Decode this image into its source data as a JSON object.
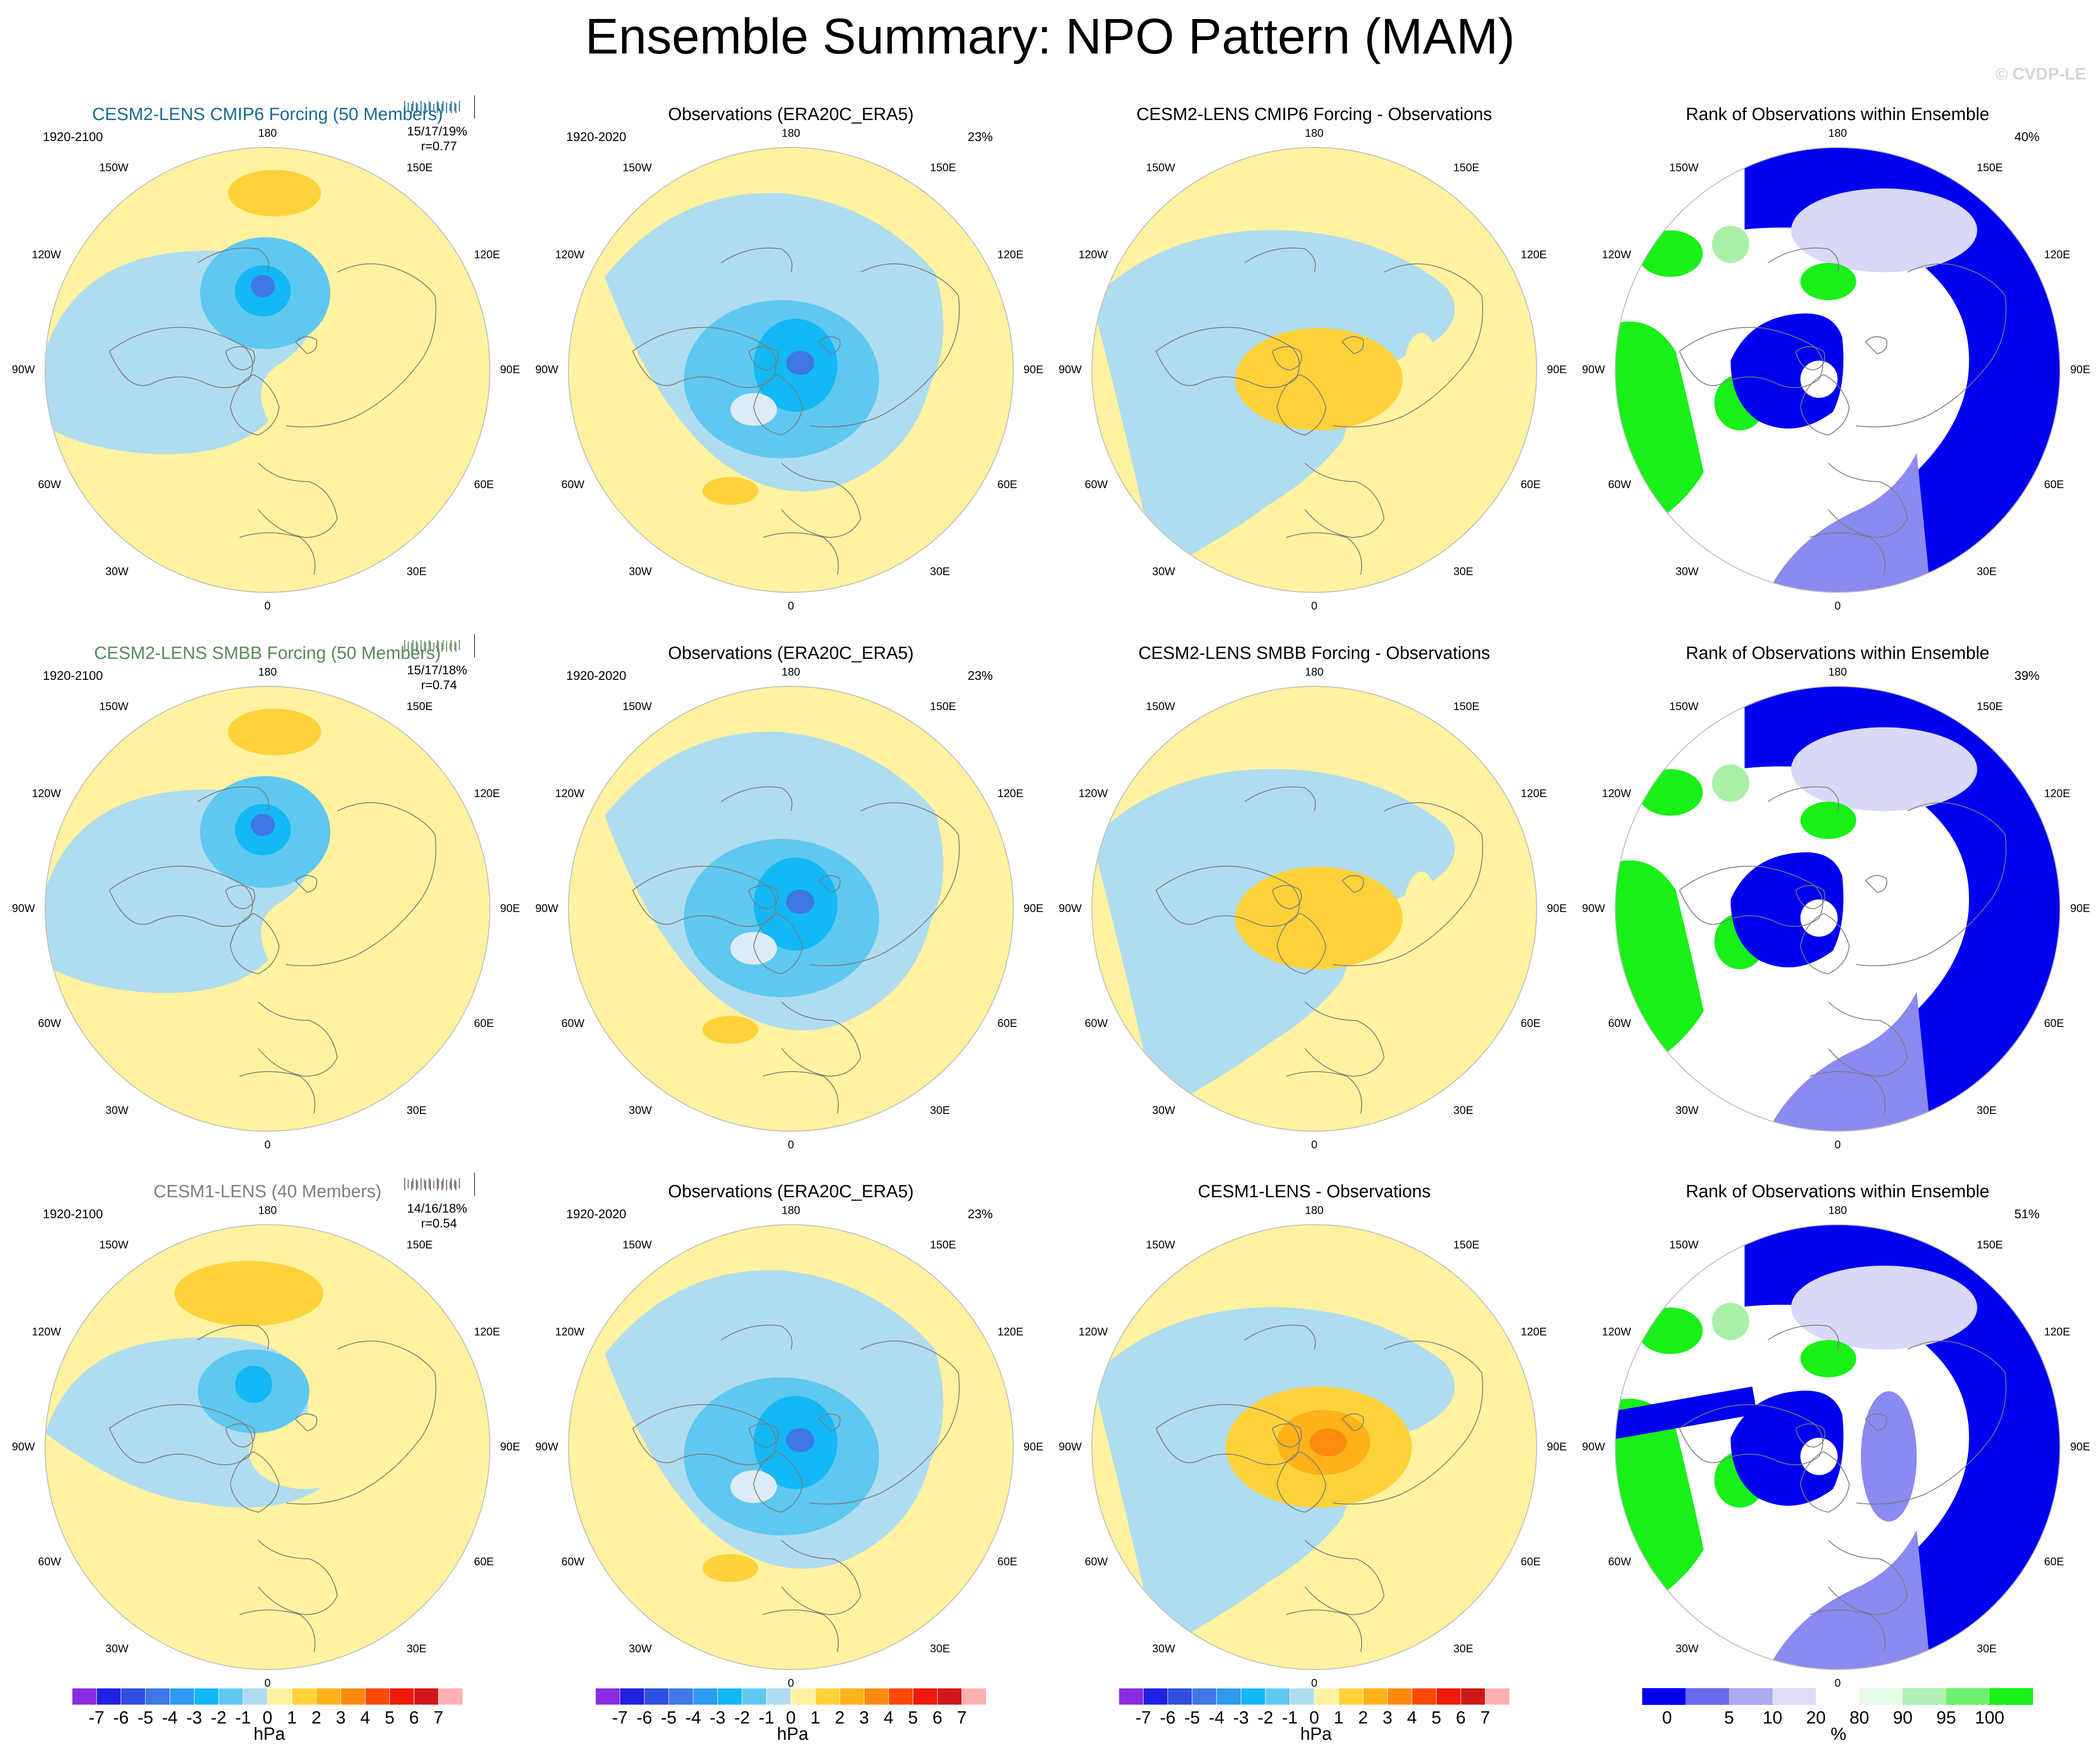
{
  "figure": {
    "title": "Ensemble Summary: NPO Pattern (MAM)",
    "watermark": "© CVDP-LE"
  },
  "longitude_labels": {
    "top": "180",
    "upper_left": "150W",
    "upper_right": "150E",
    "mid_upper_left": "120W",
    "mid_upper_right": "120E",
    "left": "90W",
    "right": "90E",
    "mid_lower_left": "60W",
    "mid_lower_right": "60E",
    "lower_left": "30W",
    "lower_right": "30E",
    "bottom": "0"
  },
  "rows": [
    {
      "ensemble": {
        "title": "CESM2-LENS CMIP6 Forcing (50 Members)",
        "title_color": "#1b6a8e",
        "period": "1920-2100",
        "stats": "15/17/19%",
        "corr": "r=0.77",
        "tick_color": "#1b6a8e"
      },
      "obs": {
        "title": "Observations (ERA20C_ERA5)",
        "period": "1920-2020",
        "pct": "23%"
      },
      "diff": {
        "title": "CESM2-LENS CMIP6 Forcing - Observations"
      },
      "rank": {
        "title": "Rank of Observations within Ensemble",
        "pct": "40%"
      }
    },
    {
      "ensemble": {
        "title": "CESM2-LENS SMBB Forcing (50 Members)",
        "title_color": "#5a8a5a",
        "period": "1920-2100",
        "stats": "15/17/18%",
        "corr": "r=0.74",
        "tick_color": "#5a8a5a"
      },
      "obs": {
        "title": "Observations (ERA20C_ERA5)",
        "period": "1920-2020",
        "pct": "23%"
      },
      "diff": {
        "title": "CESM2-LENS SMBB Forcing - Observations"
      },
      "rank": {
        "title": "Rank of Observations within Ensemble",
        "pct": "39%"
      }
    },
    {
      "ensemble": {
        "title": "CESM1-LENS (40 Members)",
        "title_color": "#7f7f7f",
        "period": "1920-2100",
        "stats": "14/16/18%",
        "corr": "r=0.54",
        "tick_color": "#6f5a5a"
      },
      "obs": {
        "title": "Observations (ERA20C_ERA5)",
        "period": "1920-2020",
        "pct": "23%"
      },
      "diff": {
        "title": "CESM1-LENS - Observations"
      },
      "rank": {
        "title": "Rank of Observations within Ensemble",
        "pct": "51%"
      }
    }
  ],
  "colorbars": {
    "hpa": {
      "unit": "hPa",
      "labels": [
        "-7",
        "-6",
        "-5",
        "-4",
        "-3",
        "-2",
        "-1",
        "0",
        "1",
        "2",
        "3",
        "4",
        "5",
        "6",
        "7"
      ],
      "colors": [
        "#8a2be2",
        "#2020e0",
        "#2f4fe0",
        "#3f77e6",
        "#2e9bf0",
        "#14b8f5",
        "#5fc8f0",
        "#b0dcf0",
        "#fff2a0",
        "#ffd23a",
        "#ffb21a",
        "#ff8a10",
        "#ff4a0a",
        "#f01a0a",
        "#d01818",
        "#ffb0b0"
      ]
    },
    "rank": {
      "unit": "%",
      "labels": [
        "0",
        "5",
        "10",
        "20",
        "80",
        "90",
        "95",
        "100"
      ],
      "colors": [
        "#0000f0",
        "#6a6af0",
        "#aaaaf0",
        "#dcdcf8",
        "#ffffff",
        "#e6fae6",
        "#b0f0b0",
        "#70f070",
        "#18f018"
      ]
    }
  },
  "palette": {
    "neg1": "#b0dcf0",
    "neg2": "#5fc8f0",
    "neg3": "#14b8f5",
    "neg4": "#3f77e6",
    "pos1": "#fff2a0",
    "pos2": "#ffd23a",
    "pos3": "#ffb21a",
    "pos4": "#ff8a10",
    "rank_blue": "#0000f0",
    "rank_mid": "#8a8af0",
    "rank_light": "#d8d8f8",
    "rank_green": "#18f018",
    "rank_lightgreen": "#a8f0a8"
  }
}
